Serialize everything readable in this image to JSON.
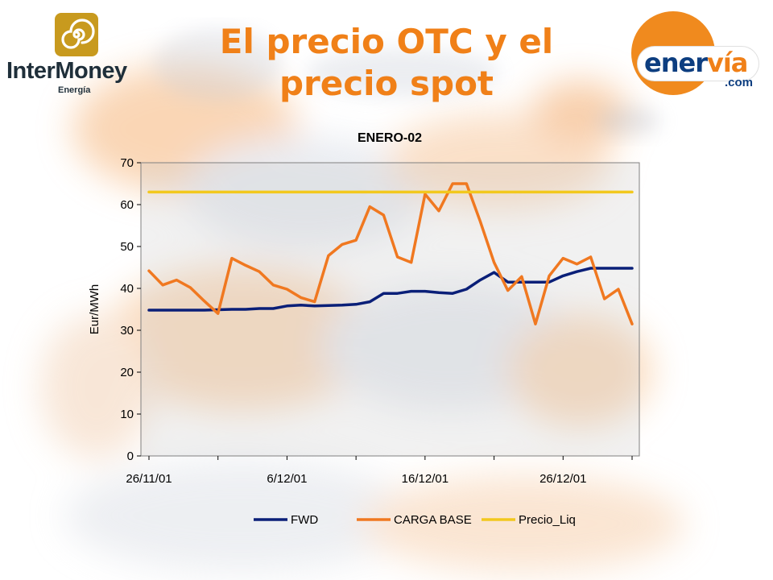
{
  "logos": {
    "left": {
      "brand": "InterMoney",
      "sub": "Energía"
    },
    "right": {
      "word_main": "ener",
      "word_accent": "vía",
      "domain": ".com"
    }
  },
  "slide": {
    "title_line1": "El precio OTC y el",
    "title_line2": "precio spot"
  },
  "colors": {
    "title": "#f08018",
    "fwd": "#0a1f78",
    "carga_base": "#f07820",
    "precio_liq": "#f2c81e"
  },
  "chart_data": {
    "type": "line",
    "title": "ENERO-02",
    "ylabel": "Eur/MWh",
    "xlabel": "",
    "ylim": [
      0,
      70
    ],
    "yticks": [
      0,
      10,
      20,
      30,
      40,
      50,
      60,
      70
    ],
    "x_tick_labels": [
      "26/11/01",
      "6/12/01",
      "16/12/01",
      "26/12/01"
    ],
    "x_tick_dates": [
      "2001-11-26",
      "2001-12-06",
      "2001-12-16",
      "2001-12-26"
    ],
    "x_range": [
      "2001-11-26",
      "2001-12-31"
    ],
    "legend_position": "bottom",
    "grid": false,
    "series": [
      {
        "name": "FWD",
        "color": "#0a1f78",
        "x": [
          "2001-11-26",
          "2001-11-27",
          "2001-11-28",
          "2001-11-29",
          "2001-11-30",
          "2001-12-01",
          "2001-12-02",
          "2001-12-03",
          "2001-12-04",
          "2001-12-05",
          "2001-12-06",
          "2001-12-07",
          "2001-12-08",
          "2001-12-09",
          "2001-12-10",
          "2001-12-11",
          "2001-12-12",
          "2001-12-13",
          "2001-12-14",
          "2001-12-15",
          "2001-12-16",
          "2001-12-17",
          "2001-12-18",
          "2001-12-19",
          "2001-12-20",
          "2001-12-21",
          "2001-12-22",
          "2001-12-23",
          "2001-12-24",
          "2001-12-25",
          "2001-12-26",
          "2001-12-27",
          "2001-12-28",
          "2001-12-29",
          "2001-12-30",
          "2001-12-31"
        ],
        "values": [
          34.8,
          34.8,
          34.8,
          34.8,
          34.8,
          34.9,
          35.0,
          35.0,
          35.2,
          35.2,
          35.8,
          36.0,
          35.8,
          35.9,
          36.0,
          36.2,
          36.8,
          38.8,
          38.8,
          39.3,
          39.3,
          39.0,
          38.8,
          39.8,
          42.0,
          43.8,
          41.5,
          41.5,
          41.5,
          41.5,
          43.0,
          44.0,
          44.8,
          44.8,
          44.8,
          44.8
        ]
      },
      {
        "name": "CARGA BASE",
        "color": "#f07820",
        "x": [
          "2001-11-26",
          "2001-11-27",
          "2001-11-28",
          "2001-11-29",
          "2001-11-30",
          "2001-12-01",
          "2001-12-02",
          "2001-12-03",
          "2001-12-04",
          "2001-12-05",
          "2001-12-06",
          "2001-12-07",
          "2001-12-08",
          "2001-12-09",
          "2001-12-10",
          "2001-12-11",
          "2001-12-12",
          "2001-12-13",
          "2001-12-14",
          "2001-12-15",
          "2001-12-16",
          "2001-12-17",
          "2001-12-18",
          "2001-12-19",
          "2001-12-20",
          "2001-12-21",
          "2001-12-22",
          "2001-12-23",
          "2001-12-24",
          "2001-12-25",
          "2001-12-26",
          "2001-12-27",
          "2001-12-28",
          "2001-12-29",
          "2001-12-30",
          "2001-12-31"
        ],
        "values": [
          44.2,
          40.8,
          42.0,
          40.2,
          37.0,
          34.0,
          47.2,
          45.5,
          44.0,
          40.8,
          39.8,
          37.8,
          36.8,
          47.8,
          50.5,
          51.5,
          59.5,
          57.5,
          47.5,
          46.2,
          62.5,
          58.5,
          65.0,
          65.0,
          56.0,
          46.2,
          39.5,
          42.8,
          31.5,
          43.0,
          47.2,
          45.8,
          47.5,
          37.5,
          39.8,
          31.5
        ]
      },
      {
        "name": "Precio_Liq",
        "color": "#f2c81e",
        "x": [
          "2001-11-26",
          "2001-12-31"
        ],
        "values": [
          63.0,
          63.0
        ]
      }
    ]
  }
}
